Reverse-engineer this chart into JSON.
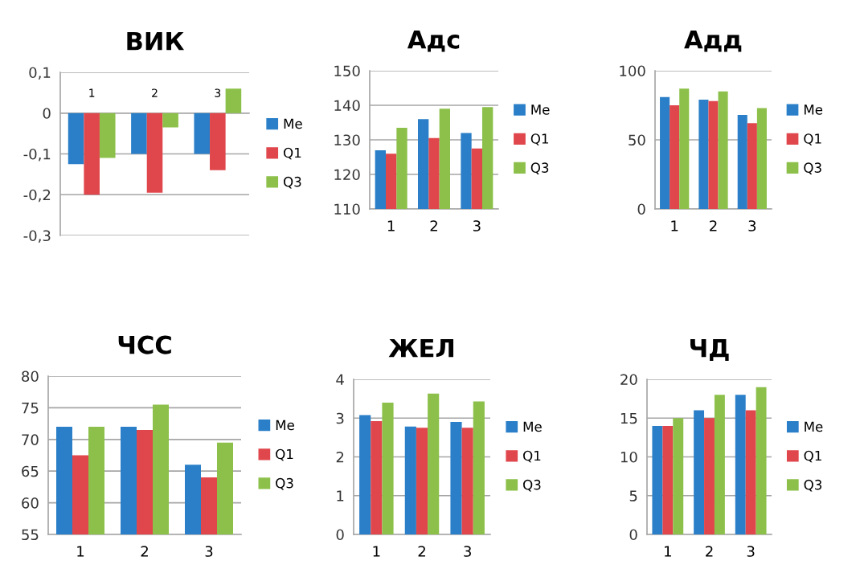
{
  "chart_data": [
    {
      "type": "bar",
      "title": "ВИК",
      "categories": [
        "1",
        "2",
        "3"
      ],
      "legend": "right",
      "grid": "y",
      "ylim": [
        -0.3,
        0.1
      ],
      "yticks": [
        {
          "value": -0.3,
          "label": "-0,3"
        },
        {
          "value": -0.2,
          "label": "-0,2"
        },
        {
          "value": -0.1,
          "label": "-0,1"
        },
        0,
        {
          "value": 0.1,
          "label": "0,1"
        }
      ],
      "series": [
        {
          "name": "Me",
          "color": "#2a7fc8",
          "values": [
            -0.125,
            -0.1,
            -0.1
          ]
        },
        {
          "name": "Q1",
          "color": "#e0474c",
          "values": [
            -0.2,
            -0.195,
            -0.14
          ]
        },
        {
          "name": "Q3",
          "color": "#8cc04a",
          "values": [
            -0.11,
            -0.035,
            0.06
          ]
        }
      ]
    },
    {
      "type": "bar",
      "title": "Адс",
      "categories": [
        "1",
        "2",
        "3"
      ],
      "legend": "right",
      "grid": "y",
      "ylim": [
        110,
        150
      ],
      "yticks": [
        110,
        120,
        130,
        140,
        150
      ],
      "series": [
        {
          "name": "Me",
          "color": "#2a7fc8",
          "values": [
            127,
            136,
            132
          ]
        },
        {
          "name": "Q1",
          "color": "#e0474c",
          "values": [
            126,
            130.5,
            127.5
          ]
        },
        {
          "name": "Q3",
          "color": "#8cc04a",
          "values": [
            133.5,
            139,
            139.5
          ]
        }
      ]
    },
    {
      "type": "bar",
      "title": "Адд",
      "categories": [
        "1",
        "2",
        "3"
      ],
      "legend": "right",
      "grid": "y",
      "ylim": [
        0,
        100
      ],
      "yticks": [
        0,
        50,
        100
      ],
      "series": [
        {
          "name": "Me",
          "color": "#2a7fc8",
          "values": [
            81,
            79,
            68
          ]
        },
        {
          "name": "Q1",
          "color": "#e0474c",
          "values": [
            75,
            78,
            62
          ]
        },
        {
          "name": "Q3",
          "color": "#8cc04a",
          "values": [
            87,
            85,
            73
          ]
        }
      ]
    },
    {
      "type": "bar",
      "title": "ЧСС",
      "categories": [
        "1",
        "2",
        "3"
      ],
      "legend": "right",
      "grid": "y",
      "ylim": [
        55,
        80
      ],
      "yticks": [
        55,
        60,
        65,
        70,
        75,
        80
      ],
      "series": [
        {
          "name": "Me",
          "color": "#2a7fc8",
          "values": [
            72,
            72,
            66
          ]
        },
        {
          "name": "Q1",
          "color": "#e0474c",
          "values": [
            67.5,
            71.5,
            64
          ]
        },
        {
          "name": "Q3",
          "color": "#8cc04a",
          "values": [
            72,
            75.5,
            69.5
          ]
        }
      ]
    },
    {
      "type": "bar",
      "title": "ЖЕЛ",
      "categories": [
        "1",
        "2",
        "3"
      ],
      "legend": "right",
      "grid": "y",
      "ylim": [
        0,
        4
      ],
      "yticks": [
        0,
        1,
        2,
        3,
        4
      ],
      "series": [
        {
          "name": "Me",
          "color": "#2a7fc8",
          "values": [
            3.08,
            2.78,
            2.9
          ]
        },
        {
          "name": "Q1",
          "color": "#e0474c",
          "values": [
            2.92,
            2.75,
            2.75
          ]
        },
        {
          "name": "Q3",
          "color": "#8cc04a",
          "values": [
            3.4,
            3.63,
            3.43
          ]
        }
      ]
    },
    {
      "type": "bar",
      "title": "ЧД",
      "categories": [
        "1",
        "2",
        "3"
      ],
      "legend": "right",
      "grid": "y",
      "ylim": [
        0,
        20
      ],
      "yticks": [
        0,
        5,
        10,
        15,
        20
      ],
      "series": [
        {
          "name": "Me",
          "color": "#2a7fc8",
          "values": [
            14,
            16,
            18
          ]
        },
        {
          "name": "Q1",
          "color": "#e0474c",
          "values": [
            14,
            15,
            16
          ]
        },
        {
          "name": "Q3",
          "color": "#8cc04a",
          "values": [
            15,
            18,
            19
          ]
        }
      ]
    }
  ]
}
